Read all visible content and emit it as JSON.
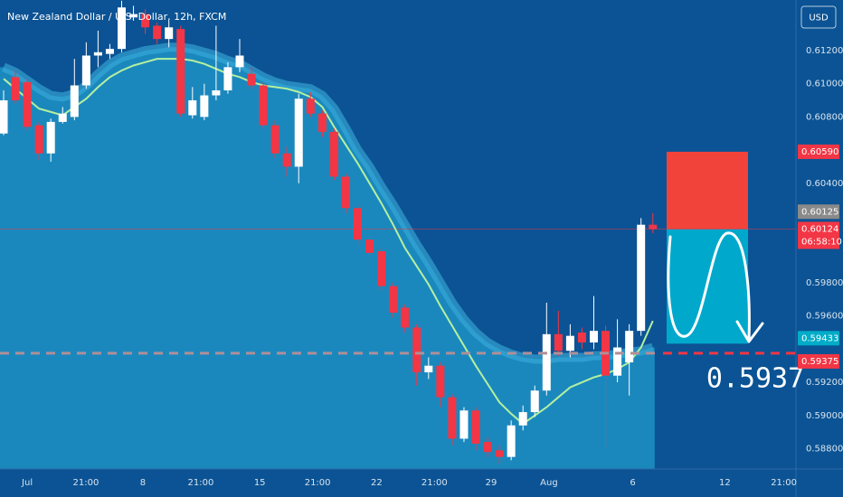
{
  "chart_data": {
    "type": "candlestick",
    "title": "New Zealand Dollar / U.S. Dollar, 12h, FXCM",
    "currency_button": "USD",
    "ylim": [
      0.58699,
      0.61505
    ],
    "yticks": [
      {
        "value": 0.612,
        "label": "0.61200"
      },
      {
        "value": 0.61,
        "label": "0.61000"
      },
      {
        "value": 0.608,
        "label": "0.60800"
      },
      {
        "value": 0.604,
        "label": "0.60400"
      },
      {
        "value": 0.598,
        "label": "0.59800"
      },
      {
        "value": 0.596,
        "label": "0.59600"
      },
      {
        "value": 0.592,
        "label": "0.59200"
      },
      {
        "value": 0.59,
        "label": "0.59000"
      },
      {
        "value": 0.588,
        "label": "0.58800"
      }
    ],
    "xticks": [
      {
        "value": 2,
        "label": "Jul"
      },
      {
        "value": 6.97,
        "label": "21:00"
      },
      {
        "value": 11.8,
        "label": "8"
      },
      {
        "value": 16.7,
        "label": "21:00"
      },
      {
        "value": 21.7,
        "label": "15"
      },
      {
        "value": 26.6,
        "label": "21:00"
      },
      {
        "value": 31.6,
        "label": "22"
      },
      {
        "value": 36.5,
        "label": "21:00"
      },
      {
        "value": 41.3,
        "label": "29"
      },
      {
        "value": 46.2,
        "label": "Aug"
      },
      {
        "value": 53.3,
        "label": "6"
      },
      {
        "value": 61.1,
        "label": "12"
      },
      {
        "value": 66.1,
        "label": "21:00"
      }
    ],
    "up_color": "#ffffff",
    "down_color": "#f23645",
    "candles": {
      "open": [
        0.607,
        0.6104,
        0.6101,
        0.6075,
        0.6058,
        0.6077,
        0.608,
        0.6099,
        0.6117,
        0.6118,
        0.6121,
        0.614,
        0.6142,
        0.6135,
        0.6127,
        0.6133,
        0.6081,
        0.608,
        0.6093,
        0.6096,
        0.611,
        0.6106,
        0.6099,
        0.6075,
        0.6058,
        0.605,
        0.6091,
        0.6082,
        0.6071,
        0.6044,
        0.6025,
        0.6006,
        0.5999,
        0.5978,
        0.5965,
        0.5953,
        0.5926,
        0.593,
        0.5911,
        0.5886,
        0.5903,
        0.5884,
        0.5879,
        0.5875,
        0.5894,
        0.5902,
        0.5915,
        0.5949,
        0.5939,
        0.595,
        0.5944,
        0.5951,
        0.5924,
        0.5932,
        0.5951,
        0.6015
      ],
      "close": [
        0.609,
        0.609,
        0.6074,
        0.6058,
        0.6077,
        0.6082,
        0.6099,
        0.6117,
        0.6119,
        0.6121,
        0.6146,
        0.6142,
        0.6134,
        0.6127,
        0.6134,
        0.6082,
        0.609,
        0.6093,
        0.6096,
        0.611,
        0.6117,
        0.6099,
        0.6075,
        0.6058,
        0.605,
        0.6091,
        0.6082,
        0.6071,
        0.6044,
        0.6025,
        0.6006,
        0.5998,
        0.5978,
        0.5962,
        0.5953,
        0.5926,
        0.593,
        0.5911,
        0.5886,
        0.5903,
        0.5883,
        0.5878,
        0.5875,
        0.5894,
        0.5902,
        0.5915,
        0.5949,
        0.5939,
        0.5948,
        0.5944,
        0.5951,
        0.5924,
        0.5941,
        0.5951,
        0.6015,
        0.60124
      ],
      "high": [
        0.6096,
        0.6108,
        0.6103,
        0.6077,
        0.6079,
        0.6086,
        0.6115,
        0.6125,
        0.6132,
        0.6124,
        0.615,
        0.6147,
        0.6145,
        0.6137,
        0.6138,
        0.6135,
        0.6098,
        0.61,
        0.6135,
        0.6113,
        0.6127,
        0.611,
        0.6101,
        0.6078,
        0.6062,
        0.6094,
        0.6095,
        0.6084,
        0.6073,
        0.6046,
        0.6027,
        0.6008,
        0.6001,
        0.598,
        0.5967,
        0.5955,
        0.5935,
        0.5932,
        0.5913,
        0.5905,
        0.5905,
        0.5887,
        0.5882,
        0.5897,
        0.5906,
        0.5918,
        0.5968,
        0.5963,
        0.5955,
        0.5953,
        0.5972,
        0.5954,
        0.5958,
        0.5955,
        0.6019,
        0.6022
      ],
      "low": [
        0.6069,
        0.6088,
        0.6072,
        0.6054,
        0.6053,
        0.6076,
        0.6078,
        0.6097,
        0.611,
        0.6115,
        0.6119,
        0.6138,
        0.613,
        0.6124,
        0.6122,
        0.608,
        0.6079,
        0.6078,
        0.609,
        0.6094,
        0.6107,
        0.6097,
        0.6073,
        0.6055,
        0.6044,
        0.604,
        0.608,
        0.6068,
        0.6042,
        0.6022,
        0.6003,
        0.5995,
        0.5975,
        0.5959,
        0.595,
        0.5918,
        0.5922,
        0.5905,
        0.5882,
        0.5884,
        0.5879,
        0.5875,
        0.5871,
        0.5873,
        0.5891,
        0.5899,
        0.5912,
        0.5936,
        0.5935,
        0.594,
        0.594,
        0.588,
        0.592,
        0.5912,
        0.5948,
        0.601
      ]
    },
    "cloud": {
      "color": "#3aaedb",
      "fill": "#1b88bd",
      "values": [
        0.611,
        0.6107,
        0.6102,
        0.6097,
        0.6093,
        0.6092,
        0.6094,
        0.6099,
        0.6106,
        0.6112,
        0.6116,
        0.6118,
        0.612,
        0.6121,
        0.6122,
        0.6122,
        0.6121,
        0.6119,
        0.6117,
        0.6114,
        0.6112,
        0.6108,
        0.6104,
        0.6101,
        0.6099,
        0.6098,
        0.6097,
        0.6093,
        0.6085,
        0.6073,
        0.606,
        0.605,
        0.6038,
        0.6027,
        0.6015,
        0.6003,
        0.5992,
        0.598,
        0.5968,
        0.5958,
        0.595,
        0.5944,
        0.594,
        0.5937,
        0.5935,
        0.5934,
        0.5934,
        0.5935,
        0.5935,
        0.5935,
        0.5936,
        0.5936,
        0.5937,
        0.5938,
        0.5939,
        0.5941
      ]
    },
    "ma": {
      "color": "#b4f0a0",
      "values": [
        0.6103,
        0.6097,
        0.6091,
        0.6085,
        0.6083,
        0.6081,
        0.6086,
        0.6091,
        0.6098,
        0.6104,
        0.6108,
        0.6111,
        0.6113,
        0.6115,
        0.6115,
        0.6115,
        0.6114,
        0.6112,
        0.6109,
        0.6106,
        0.6104,
        0.6101,
        0.6099,
        0.6098,
        0.6097,
        0.6095,
        0.6092,
        0.6086,
        0.6074,
        0.6063,
        0.6052,
        0.604,
        0.6028,
        0.6015,
        0.6001,
        0.599,
        0.5979,
        0.5966,
        0.5954,
        0.5942,
        0.593,
        0.5919,
        0.5908,
        0.5901,
        0.5895,
        0.59,
        0.5905,
        0.5911,
        0.5917,
        0.592,
        0.5923,
        0.5925,
        0.5928,
        0.5932,
        0.5941,
        0.5957
      ]
    },
    "position": {
      "stop": {
        "value": 0.6059,
        "label": "0.60590",
        "color": "#f23645"
      },
      "entry": {
        "value": 0.60124,
        "label": "0.60124",
        "color": "#f23645",
        "countdown": "06:58:10"
      },
      "target": {
        "value": 0.59433,
        "label": "0.59433",
        "color": "#00acc8"
      },
      "stop_fill": "#f2433a",
      "target_fill": "#00a8cc"
    },
    "last_high_label": {
      "value": 0.60125,
      "label": "0.60125",
      "color": "#8a8a8a"
    },
    "price_line": {
      "value": 0.59375,
      "label": "0.59375",
      "color": "#f23645",
      "annotation": "0.5937"
    }
  }
}
